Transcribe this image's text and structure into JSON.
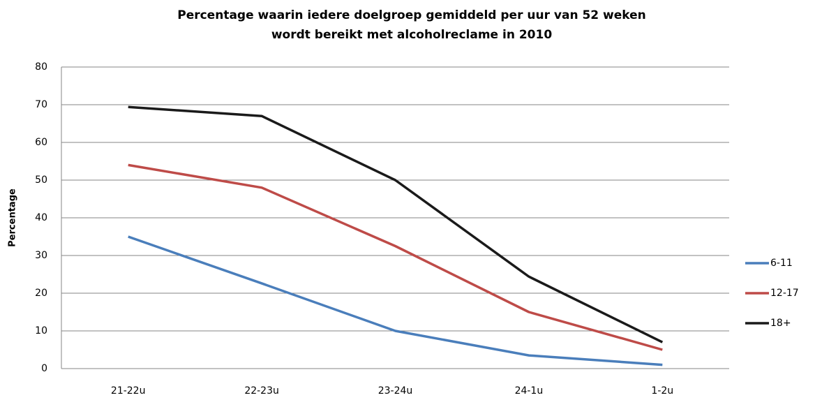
{
  "chart_data": {
    "type": "line",
    "title": "Percentage waarin iedere doelgroep gemiddeld per uur van 52 weken wordt bereikt met alcoholreclame in 2010",
    "y_label": "Percentage",
    "categories": [
      "21-22u",
      "22-23u",
      "23-24u",
      "24-1u",
      "1-2u"
    ],
    "series": [
      {
        "name": "6-11",
        "color": "#4a7ebb",
        "values": [
          35,
          22.6,
          10,
          3.5,
          1
        ]
      },
      {
        "name": "12-17",
        "color": "#be4b48",
        "values": [
          54,
          48,
          32.5,
          15,
          5
        ]
      },
      {
        "name": "18+",
        "color": "#1a1a1a",
        "values": [
          69.4,
          67,
          50,
          24.4,
          7
        ]
      }
    ],
    "ylim": [
      0,
      80
    ],
    "yticks": [
      0,
      10,
      20,
      30,
      40,
      50,
      60,
      70,
      80
    ],
    "grid": true,
    "legend": "right"
  }
}
